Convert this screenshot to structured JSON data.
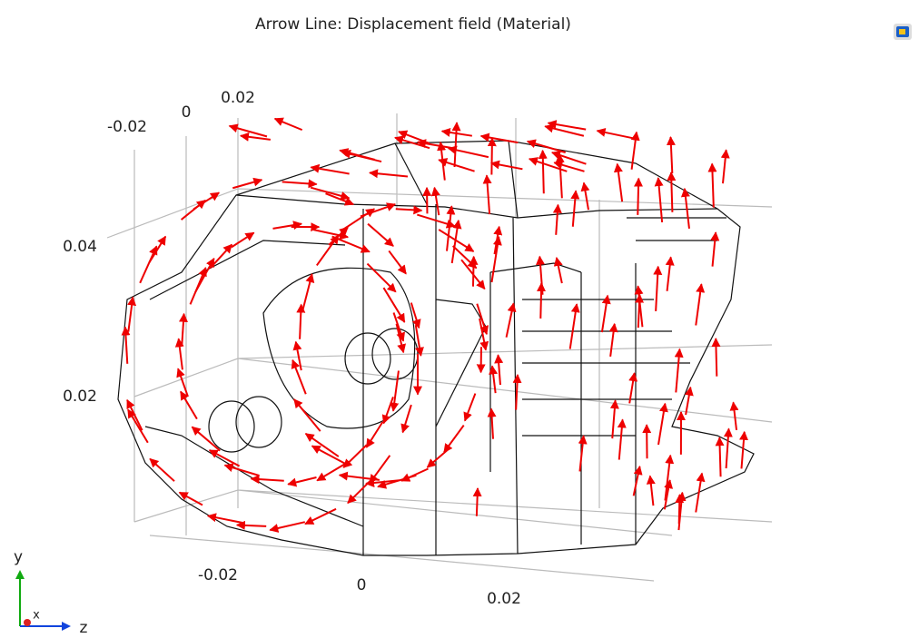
{
  "title": "Arrow Line: Displacement field (Material)",
  "axis_labels": {
    "top": [
      "-0.02",
      "0",
      "0.02"
    ],
    "left": [
      "0.04",
      "0.02"
    ],
    "bottom": [
      "-0.02",
      "0",
      "0.02"
    ]
  },
  "triad": {
    "y": "y",
    "x": "x",
    "z": "z"
  }
}
